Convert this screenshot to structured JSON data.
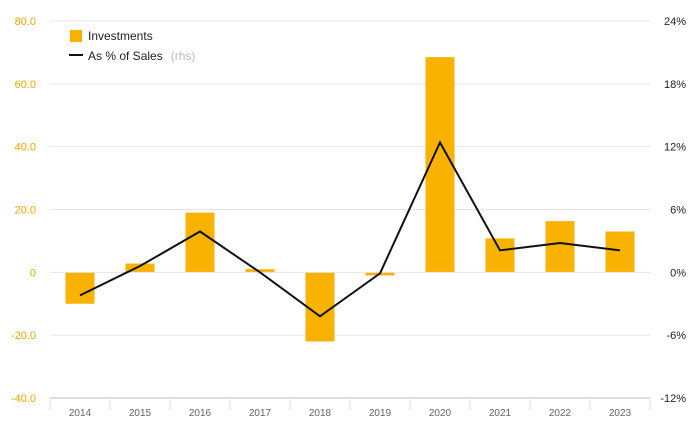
{
  "chart_data": {
    "type": "bar+line",
    "categories": [
      "2014",
      "2015",
      "2016",
      "2017",
      "2018",
      "2019",
      "2020",
      "2021",
      "2022",
      "2023"
    ],
    "series": [
      {
        "name": "Investments",
        "type": "bar",
        "axis": "left",
        "values": [
          -10.0,
          2.8,
          19.0,
          1.0,
          -22.0,
          -1.0,
          68.5,
          10.8,
          16.3,
          13.0
        ]
      },
      {
        "name": "As % of Sales",
        "type": "line",
        "axis": "right",
        "values": [
          -2.2,
          0.6,
          3.9,
          0.0,
          -4.2,
          -0.1,
          12.4,
          2.1,
          2.8,
          2.1
        ]
      }
    ],
    "yleft": {
      "min": -40,
      "max": 80,
      "ticks": [
        80,
        60,
        40,
        20,
        0,
        -20,
        -40
      ],
      "tick_labels": [
        "80.0",
        "60.0",
        "40.0",
        "20.0",
        "0",
        "-20.0",
        "-40.0"
      ]
    },
    "yright": {
      "min": -12,
      "max": 24,
      "ticks": [
        24,
        18,
        12,
        6,
        0,
        -6,
        -12
      ],
      "tick_labels": [
        "24%",
        "18%",
        "12%",
        "6%",
        "0%",
        "-6%",
        "-12%"
      ]
    },
    "legend": {
      "position": "top-left",
      "bar_label": "Investments",
      "line_label": "As % of Sales",
      "line_note": "(rhs)"
    },
    "grid": true,
    "colors": {
      "bar": "#f9b200",
      "line": "#111111",
      "left_axis_text": "#f0a500",
      "grid": "#e6e6e6",
      "baseline": "#bdbdbd"
    }
  }
}
